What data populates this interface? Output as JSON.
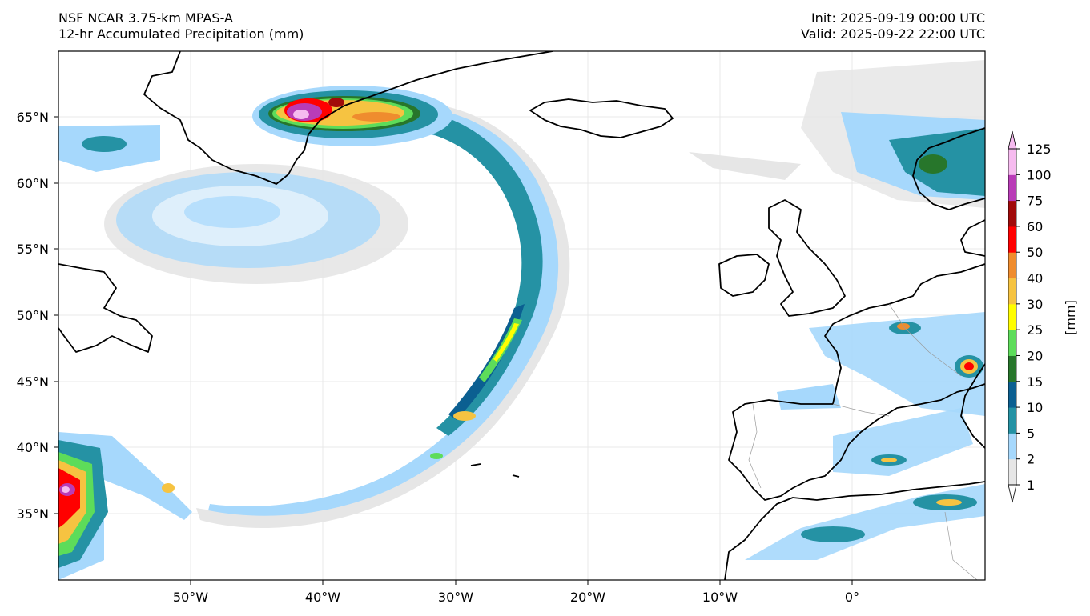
{
  "header": {
    "model": "NSF NCAR 3.75-km MPAS-A",
    "field": "12-hr Accumulated Precipitation (mm)",
    "init": "Init: 2025-09-19 00:00 UTC",
    "valid": "Valid: 2025-09-22 22:00 UTC"
  },
  "axes": {
    "lat_labels": [
      "65°N",
      "60°N",
      "55°N",
      "50°N",
      "45°N",
      "40°N",
      "35°N"
    ],
    "lon_labels": [
      "50°W",
      "40°W",
      "30°W",
      "20°W",
      "10°W",
      "0°"
    ]
  },
  "colorbar": {
    "unit_label": "[mm]",
    "levels": [
      "1",
      "2",
      "5",
      "10",
      "15",
      "20",
      "25",
      "30",
      "40",
      "50",
      "60",
      "75",
      "100",
      "125"
    ],
    "colors": [
      "#e6e6e6",
      "#a6d8fc",
      "#2592a4",
      "#0b5f91",
      "#27762b",
      "#5ddc5a",
      "#fffd00",
      "#f6c341",
      "#ef8c2e",
      "#ff0000",
      "#a10a0a",
      "#b93cb7",
      "#f6bbef"
    ],
    "under_color": "#ffffff",
    "over_color": "#f6bbef"
  }
}
